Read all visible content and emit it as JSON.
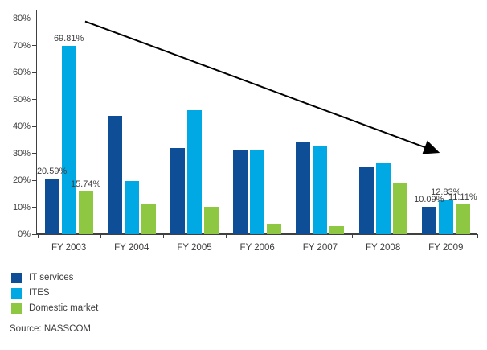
{
  "chart_data": {
    "type": "bar",
    "title": "",
    "xlabel": "",
    "ylabel": "",
    "categories": [
      "FY 2003",
      "FY 2004",
      "FY 2005",
      "FY 2006",
      "FY 2007",
      "FY 2008",
      "FY 2009"
    ],
    "series": [
      {
        "name": "IT services",
        "color": "#0d4e96",
        "values": [
          20.59,
          43.8,
          32.0,
          31.3,
          34.4,
          24.7,
          10.09
        ],
        "point_labels": [
          "20.59%",
          null,
          null,
          null,
          null,
          null,
          "10.09%"
        ]
      },
      {
        "name": "ITES",
        "color": "#00a9e3",
        "values": [
          69.81,
          19.6,
          46.0,
          31.4,
          32.8,
          26.2,
          12.83
        ],
        "point_labels": [
          "69.81%",
          null,
          null,
          null,
          null,
          null,
          "12.83%"
        ]
      },
      {
        "name": "Domestic market",
        "color": "#8ec741",
        "values": [
          15.74,
          11.0,
          10.2,
          3.5,
          3.1,
          18.9,
          11.11
        ],
        "point_labels": [
          "15.74%",
          null,
          null,
          null,
          null,
          null,
          "11.11%"
        ]
      }
    ],
    "ylim": [
      0,
      80
    ],
    "ytick_labels": [
      "0%",
      "10%",
      "20%",
      "30%",
      "40%",
      "50%",
      "60%",
      "70%",
      "80%"
    ],
    "grid": false,
    "legend_position": "bottom-left",
    "trend_arrow": {
      "from": {
        "category_x": 0.76,
        "value": 79.0
      },
      "to": {
        "category_x": 6.42,
        "value": 30.0
      }
    }
  },
  "legend": {
    "items": [
      {
        "label": "IT services",
        "color": "#0d4e96"
      },
      {
        "label": "ITES",
        "color": "#00a9e3"
      },
      {
        "label": "Domestic market",
        "color": "#8ec741"
      }
    ]
  },
  "source_note": "Source: NASSCOM",
  "colors": {
    "axis": "#404040",
    "text": "#3d3d3d",
    "arrow": "#000000",
    "background": "#ffffff"
  }
}
